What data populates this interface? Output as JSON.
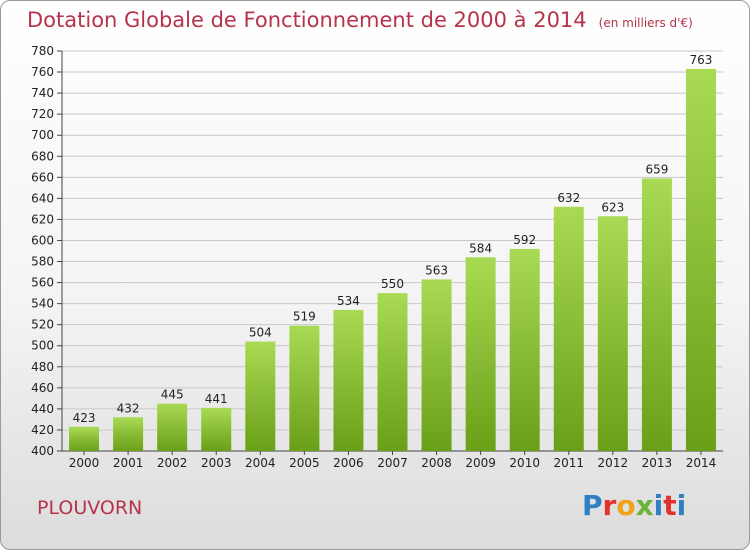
{
  "header": {
    "title": "Dotation Globale de Fonctionnement de 2000 à 2014",
    "subtitle": "(en milliers d'€)"
  },
  "footer": {
    "commune": "PLOUVORN",
    "logo_text": "Proxiti"
  },
  "colors": {
    "bar_light": "#a9da54",
    "bar_dark": "#6a9f18",
    "title": "#b5334b",
    "grid": "#c8c8c8"
  },
  "chart_data": {
    "type": "bar",
    "title": "Dotation Globale de Fonctionnement de 2000 à 2014",
    "subtitle": "(en milliers d'€)",
    "categories": [
      "2000",
      "2001",
      "2002",
      "2003",
      "2004",
      "2005",
      "2006",
      "2007",
      "2008",
      "2009",
      "2010",
      "2011",
      "2012",
      "2013",
      "2014"
    ],
    "values": [
      423,
      432,
      445,
      441,
      504,
      519,
      534,
      550,
      563,
      584,
      592,
      632,
      623,
      659,
      763
    ],
    "ylim": [
      400,
      780
    ],
    "ytick_step": 20,
    "grid": true,
    "xlabel": "",
    "ylabel": ""
  }
}
